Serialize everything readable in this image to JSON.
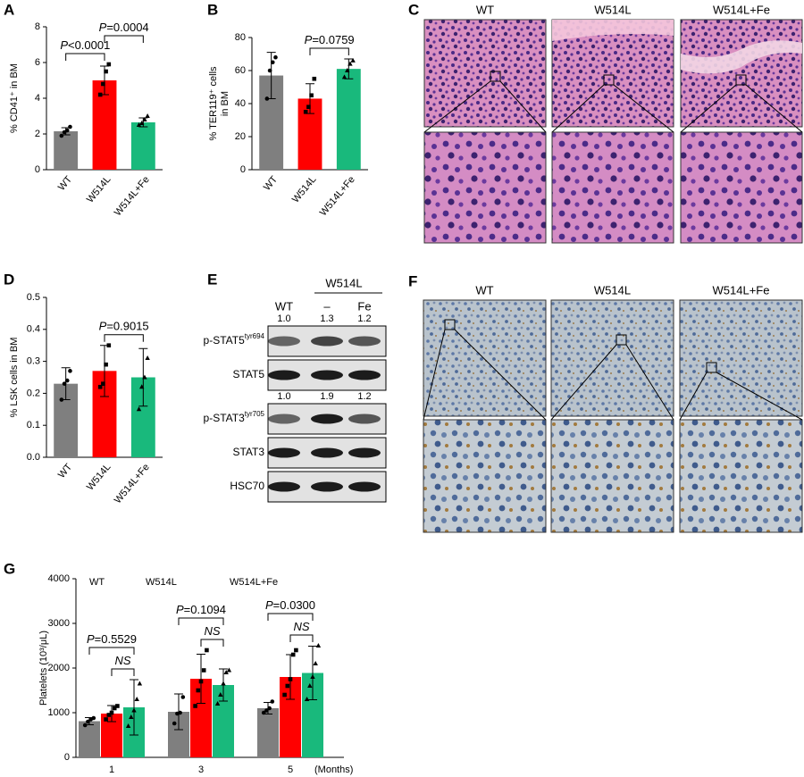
{
  "chart_data": [
    {
      "type": "bar",
      "panel": "A",
      "ylabel": [
        "% CD41⁺ in BM"
      ],
      "categories": [
        "WT",
        "W514L",
        "W514L+Fe"
      ],
      "values": [
        2.15,
        5.0,
        2.65
      ],
      "errors": [
        0.2,
        0.8,
        0.25
      ],
      "points": [
        [
          1.9,
          2.1,
          2.2,
          2.4
        ],
        [
          4.2,
          4.8,
          5.5,
          5.9
        ],
        [
          2.5,
          2.6,
          2.8,
          3.0
        ]
      ],
      "colors": [
        "#7f7f7f",
        "#ff0000",
        "#19b97c"
      ],
      "ylim": [
        0,
        8
      ],
      "yticks": [
        0,
        2,
        4,
        6,
        8
      ],
      "annotations": [
        {
          "between": [
            "WT",
            "W514L"
          ],
          "text": "P<0.0001"
        },
        {
          "between": [
            "W514L",
            "W514L+Fe"
          ],
          "text": "P=0.0004"
        }
      ]
    },
    {
      "type": "bar",
      "panel": "B",
      "ylabel": [
        "% TER119⁺ cells",
        "in BM"
      ],
      "categories": [
        "WT",
        "W514L",
        "W514L+Fe"
      ],
      "values": [
        57,
        43,
        61
      ],
      "errors": [
        14,
        9,
        6
      ],
      "points": [
        [
          43,
          60,
          65,
          68
        ],
        [
          35,
          38,
          45,
          55
        ],
        [
          56,
          60,
          64,
          66
        ]
      ],
      "colors": [
        "#7f7f7f",
        "#ff0000",
        "#19b97c"
      ],
      "ylim": [
        0,
        80
      ],
      "yticks": [
        0,
        20,
        40,
        60,
        80
      ],
      "annotations": [
        {
          "between": [
            "W514L",
            "W514L+Fe"
          ],
          "text": "P=0.0759"
        }
      ]
    },
    {
      "type": "bar",
      "panel": "D",
      "ylabel": [
        "% LSK cells in BM"
      ],
      "categories": [
        "WT",
        "W514L",
        "W514L+Fe"
      ],
      "values": [
        0.23,
        0.27,
        0.25
      ],
      "errors": [
        0.05,
        0.08,
        0.09
      ],
      "points": [
        [
          0.18,
          0.23,
          0.24,
          0.27
        ],
        [
          0.22,
          0.23,
          0.29,
          0.35
        ],
        [
          0.15,
          0.22,
          0.25,
          0.31
        ]
      ],
      "colors": [
        "#7f7f7f",
        "#ff0000",
        "#19b97c"
      ],
      "ylim": [
        0,
        0.5
      ],
      "yticks": [
        {
          "value": 0,
          "label": "0.0"
        },
        0.1,
        0.2,
        0.3,
        0.4,
        0.5
      ],
      "annotations": [
        {
          "between": [
            "W514L",
            "W514L+Fe"
          ],
          "text": "P=0.9015"
        }
      ]
    },
    {
      "type": "grouped-bar",
      "panel": "G",
      "ylabel": [
        "Platelets (10³/μL)"
      ],
      "x_unit": "(Months)",
      "categories": [
        "1",
        "3",
        "5"
      ],
      "ylim": [
        0,
        4000
      ],
      "yticks": [
        0,
        1000,
        2000,
        3000,
        4000
      ],
      "series": [
        {
          "name": "WT",
          "color": "#7f7f7f",
          "values": [
            810,
            1020,
            1100
          ],
          "errors": [
            80,
            400,
            130
          ],
          "points": [
            [
              720,
              800,
              850,
              880
            ],
            [
              760,
              980,
              1000,
              1350
            ],
            [
              1000,
              1050,
              1100,
              1250
            ]
          ]
        },
        {
          "name": "W514L",
          "color": "#ff0000",
          "values": [
            980,
            1760,
            1800
          ],
          "errors": [
            180,
            550,
            500
          ],
          "points": [
            [
              850,
              950,
              1000,
              1100,
              1150
            ],
            [
              1150,
              1500,
              1700,
              1950,
              2400
            ],
            [
              1400,
              1600,
              1750,
              2300,
              2400
            ]
          ]
        },
        {
          "name": "W514L+Fe",
          "color": "#19b97c",
          "values": [
            1120,
            1620,
            1890
          ],
          "errors": [
            620,
            360,
            600
          ],
          "points": [
            [
              700,
              900,
              1050,
              1300,
              1650
            ],
            [
              1200,
              1400,
              1650,
              1900,
              1950
            ],
            [
              1300,
              1600,
              1800,
              2100,
              2500
            ]
          ]
        }
      ],
      "annotations": [
        {
          "category": "1",
          "between": [
            "W514L",
            "W514L+Fe"
          ],
          "text": "NS"
        },
        {
          "category": "1",
          "between": [
            "WT",
            "W514L+Fe"
          ],
          "text": "P=0.5529"
        },
        {
          "category": "3",
          "between": [
            "W514L",
            "W514L+Fe"
          ],
          "text": "NS"
        },
        {
          "category": "3",
          "between": [
            "WT",
            "W514L+Fe"
          ],
          "text": "P=0.1094"
        },
        {
          "category": "5",
          "between": [
            "W514L",
            "W514L+Fe"
          ],
          "text": "NS"
        },
        {
          "category": "5",
          "between": [
            "WT",
            "W514L+Fe"
          ],
          "text": "P=0.0300"
        }
      ]
    }
  ],
  "histology_c": {
    "panel": "C",
    "columns": [
      "WT",
      "W514L",
      "W514L+Fe"
    ]
  },
  "western_e": {
    "panel": "E",
    "group": "W514L",
    "lanes": [
      "WT",
      "–",
      "Fe"
    ],
    "blots": [
      {
        "quant": [
          "1.0",
          "1.3",
          "1.2"
        ],
        "label": "p-STAT5",
        "superscript": "tyr694"
      },
      {
        "label": "STAT5"
      },
      {
        "quant": [
          "1.0",
          "1.9",
          "1.2"
        ],
        "label": "p-STAT3",
        "superscript": "tyr705"
      },
      {
        "label": "STAT3"
      },
      {
        "label": "HSC70"
      }
    ]
  },
  "histology_f": {
    "panel": "F",
    "columns": [
      "WT",
      "W514L",
      "W514L+Fe"
    ]
  }
}
